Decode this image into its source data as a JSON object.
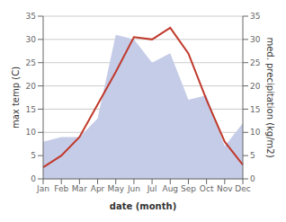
{
  "chart_data": {
    "type": "line",
    "xlabel": "date (month)",
    "ylabel": "max temp (C)",
    "y2label": "med. precipitation (kg/m2)",
    "categories": [
      "Jan",
      "Feb",
      "Mar",
      "Apr",
      "May",
      "Jun",
      "Jul",
      "Aug",
      "Sep",
      "Oct",
      "Nov",
      "Dec"
    ],
    "series": [
      {
        "type": "area",
        "axis": "y2",
        "color": "#c5cce8",
        "values": [
          8,
          9,
          9,
          13,
          31,
          30,
          25,
          27,
          17,
          18,
          7,
          12
        ]
      },
      {
        "type": "line",
        "color": "#c0392b",
        "values": [
          2.5,
          5,
          9,
          16,
          23,
          30.5,
          30,
          32.5,
          27,
          17,
          8,
          3
        ]
      }
    ],
    "ylim": [
      0,
      35
    ],
    "yticks": [
      0,
      5,
      10,
      15,
      20,
      25,
      30,
      35
    ],
    "y2lim": [
      0,
      35
    ],
    "y2ticks": [
      0,
      5,
      10,
      15,
      20,
      25,
      30,
      35
    ],
    "grid": true
  }
}
